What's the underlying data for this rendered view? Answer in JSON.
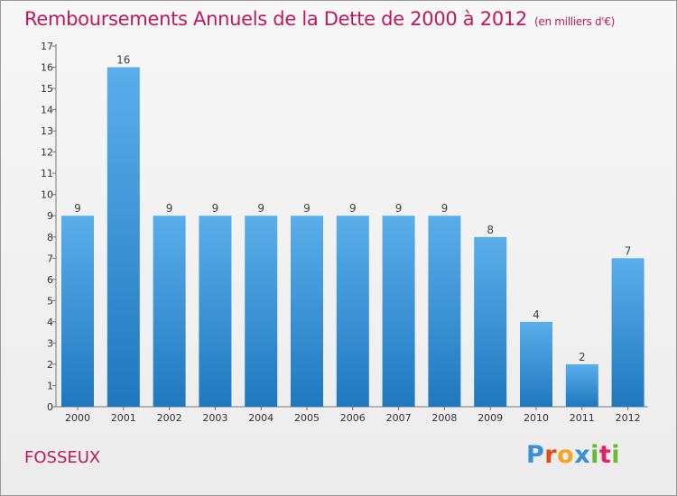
{
  "header": {
    "title": "Remboursements Annuels de la Dette de 2000 à 2012",
    "unit_note": "(en milliers d'€)"
  },
  "footer": {
    "commune": "FOSSEUX",
    "brand": "Proxiti"
  },
  "colors": {
    "title": "#c2185b",
    "bar_light": "#5aaeea",
    "bar_dark": "#1f78bf",
    "logo_letters": [
      "#3a8fd9",
      "#e64a19",
      "#f5a623",
      "#3a8fd9",
      "#66bb33",
      "#e91e63",
      "#66bb33"
    ]
  },
  "chart_data": {
    "type": "bar",
    "title": "Remboursements Annuels de la Dette de 2000 à 2012",
    "subtitle": "(en milliers d'€)",
    "xlabel": "",
    "ylabel": "",
    "categories": [
      "2000",
      "2001",
      "2002",
      "2003",
      "2004",
      "2005",
      "2006",
      "2007",
      "2008",
      "2009",
      "2010",
      "2011",
      "2012"
    ],
    "values": [
      9,
      16,
      9,
      9,
      9,
      9,
      9,
      9,
      9,
      8,
      4,
      2,
      7
    ],
    "ylim": [
      0,
      17
    ],
    "yticks": [
      "0",
      "1",
      "2",
      "3",
      "4",
      "5",
      "6",
      "7",
      "8",
      "9",
      "10",
      "11",
      "12",
      "13",
      "14",
      "15",
      "16",
      "17"
    ],
    "grid": false,
    "data_labels": true
  }
}
